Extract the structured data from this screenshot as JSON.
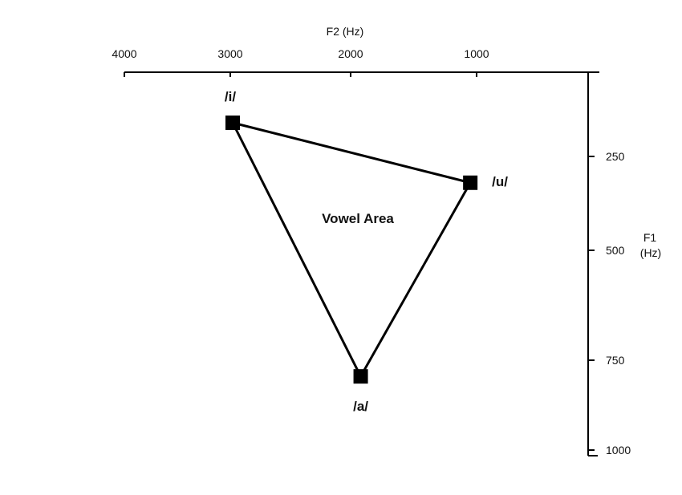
{
  "chart_data": {
    "type": "scatter",
    "title": "",
    "x_axis": {
      "label": "F2 (Hz)",
      "ticks": [
        4000,
        3000,
        2000,
        1000
      ],
      "tick_labels": [
        "4000",
        "3000",
        "2000",
        "1000"
      ],
      "range": [
        4000,
        0
      ],
      "reversed": true,
      "position": "top"
    },
    "y_axis": {
      "label_line1": "F1",
      "label_line2": "(Hz)",
      "ticks": [
        250,
        500,
        750,
        1000
      ],
      "tick_labels": [
        "250",
        "500",
        "750",
        "1000"
      ],
      "range": [
        0,
        1000
      ],
      "reversed": true,
      "position": "right"
    },
    "points": [
      {
        "label": "/i/",
        "f2": 2980,
        "f1": 150
      },
      {
        "label": "/u/",
        "f2": 1050,
        "f1": 320
      },
      {
        "label": "/a/",
        "f2": 1920,
        "f1": 795
      }
    ],
    "connected": true,
    "area_label": "Vowel Area",
    "grid": false,
    "marker_color": "#000000",
    "line_color": "#000000"
  }
}
